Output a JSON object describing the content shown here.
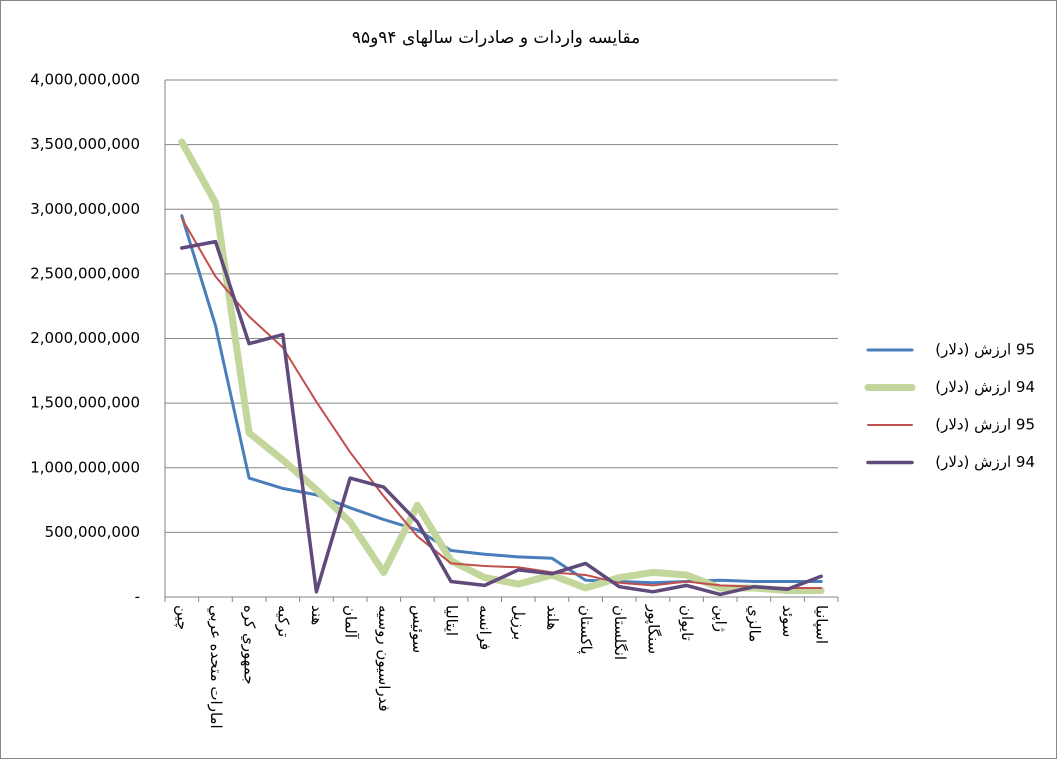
{
  "chart_data": {
    "type": "line",
    "title": "مقایسه واردات و صادرات سالهای ۹۴و۹۵",
    "categories": [
      "چين",
      "امارات متحده عربي",
      "جمهوري کره",
      "ترکيه",
      "هند",
      "آلمان",
      "فدراسيون روسيه",
      "سوئيس",
      "ايتاليا",
      "فرانسه",
      "برزيل",
      "هلند",
      "پاکستان",
      "انگلستان",
      "سنگاپور",
      "تايوان",
      "ژاپن",
      "مالزي",
      "سوئد",
      "اسپانيا"
    ],
    "ylim": [
      0,
      4000000000
    ],
    "yticks": [
      {
        "value": 0,
        "label": "-"
      },
      {
        "value": 500000000,
        "label": "500,000,000"
      },
      {
        "value": 1000000000,
        "label": "1,000,000,000"
      },
      {
        "value": 1500000000,
        "label": "1,500,000,000"
      },
      {
        "value": 2000000000,
        "label": "2,000,000,000"
      },
      {
        "value": 2500000000,
        "label": "2,500,000,000"
      },
      {
        "value": 3000000000,
        "label": "3,000,000,000"
      },
      {
        "value": 3500000000,
        "label": "3,500,000,000"
      },
      {
        "value": 4000000000,
        "label": "4,000,000,000"
      }
    ],
    "grid": true,
    "legend": "right",
    "series": [
      {
        "name": "95 ارزش (دلار)",
        "color": "#4a7ebb",
        "width": 3,
        "values": [
          2950000000,
          2100000000,
          920000000,
          840000000,
          790000000,
          690000000,
          600000000,
          520000000,
          360000000,
          330000000,
          310000000,
          300000000,
          130000000,
          120000000,
          110000000,
          120000000,
          130000000,
          120000000,
          120000000,
          120000000
        ]
      },
      {
        "name": "94 ارزش (دلار)",
        "color": "#c3d69b",
        "width": 7,
        "values": [
          3520000000,
          3050000000,
          1270000000,
          1060000000,
          830000000,
          580000000,
          190000000,
          710000000,
          280000000,
          150000000,
          100000000,
          170000000,
          70000000,
          150000000,
          190000000,
          170000000,
          70000000,
          70000000,
          50000000,
          50000000
        ]
      },
      {
        "name": "95 ارزش (دلار)",
        "color": "#c0504d",
        "width": 2,
        "values": [
          2930000000,
          2480000000,
          2170000000,
          1930000000,
          1510000000,
          1120000000,
          780000000,
          470000000,
          260000000,
          240000000,
          230000000,
          190000000,
          170000000,
          110000000,
          90000000,
          120000000,
          90000000,
          80000000,
          70000000,
          70000000
        ]
      },
      {
        "name": "94 ارزش (دلار)",
        "color": "#604a7b",
        "width": 3.5,
        "values": [
          2700000000,
          2750000000,
          1960000000,
          2030000000,
          40000000,
          920000000,
          850000000,
          580000000,
          120000000,
          90000000,
          210000000,
          180000000,
          260000000,
          80000000,
          40000000,
          90000000,
          20000000,
          80000000,
          60000000,
          160000000
        ]
      }
    ]
  }
}
